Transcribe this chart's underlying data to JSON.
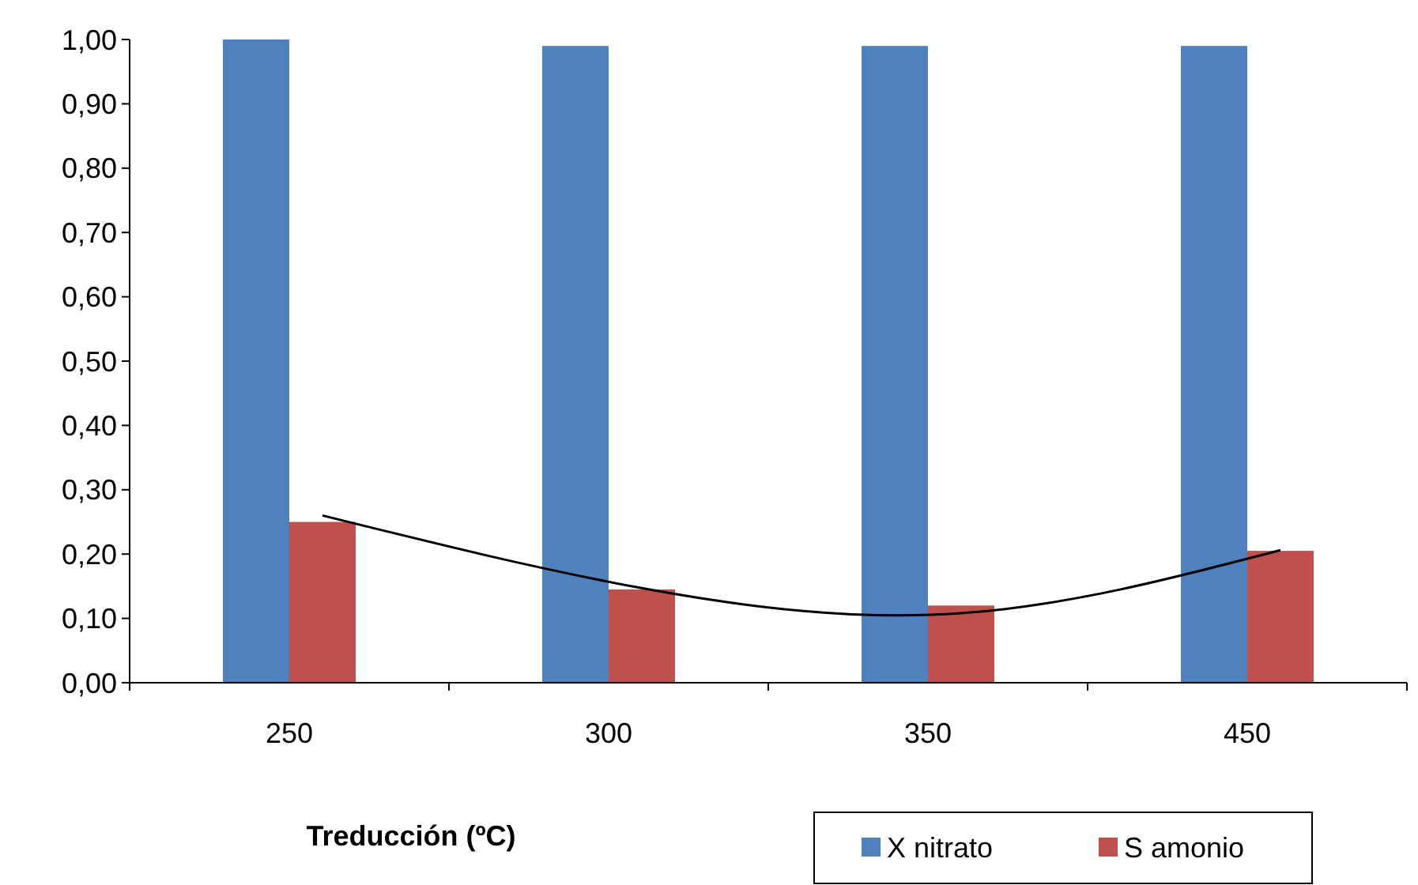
{
  "chart_data": {
    "type": "bar",
    "xlabel": "Treducción (ºC)",
    "categories": [
      "250",
      "300",
      "350",
      "450"
    ],
    "series": [
      {
        "name": "X nitrato",
        "color": "#4f81bd",
        "values": [
          1.0,
          0.99,
          0.99,
          0.99
        ]
      },
      {
        "name": "S amonio",
        "color": "#c0504d",
        "values": [
          0.25,
          0.145,
          0.12,
          0.205
        ]
      },
      {
        "type": "line",
        "color": "#000000",
        "values": [
          0.26,
          0.147,
          0.108,
          0.206
        ]
      }
    ],
    "ylim": [
      0,
      1
    ],
    "yticks": [
      {
        "value": 0,
        "label": "0,00"
      },
      {
        "value": 0.1,
        "label": "0,10"
      },
      {
        "value": 0.2,
        "label": "0,20"
      },
      {
        "value": 0.3,
        "label": "0,30"
      },
      {
        "value": 0.4,
        "label": "0,40"
      },
      {
        "value": 0.5,
        "label": "0,50"
      },
      {
        "value": 0.6,
        "label": "0,60"
      },
      {
        "value": 0.7,
        "label": "0,70"
      },
      {
        "value": 0.8,
        "label": "0,80"
      },
      {
        "value": 0.9,
        "label": "0,90"
      },
      {
        "value": 1,
        "label": "1,00"
      }
    ],
    "grid": false,
    "legend": "bottom right",
    "marker": "none",
    "line_style": "solid"
  }
}
